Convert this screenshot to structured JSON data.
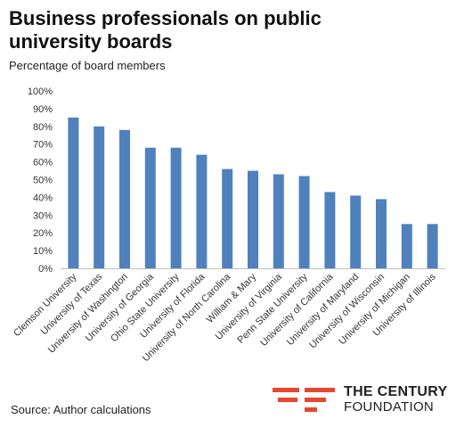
{
  "title": "Business professionals on public university boards",
  "subtitle": "Percentage of board members",
  "source": "Source: Author calculations",
  "logo": {
    "line1": "THE CENTURY",
    "line2": "FOUNDATION",
    "accent_color": "#e8472f"
  },
  "chart_data": {
    "type": "bar",
    "categories": [
      "Clemson University",
      "University of Texas",
      "University of Washington",
      "University of Georgia",
      "Ohio State University",
      "University of Florida",
      "University of North Carolina",
      "William & Mary",
      "University of Virginia",
      "Penn State University",
      "University of California",
      "University of Maryland",
      "University of Wisconsin",
      "University of Michigan",
      "University of Illinois"
    ],
    "values": [
      85,
      80,
      78,
      68,
      68,
      64,
      56,
      55,
      53,
      52,
      43,
      41,
      39,
      25,
      25
    ],
    "ylabel": "Percentage of board members",
    "ylim": [
      0,
      100
    ],
    "yticks": [
      "0%",
      "10%",
      "20%",
      "30%",
      "40%",
      "50%",
      "60%",
      "70%",
      "80%",
      "90%",
      "100%"
    ],
    "bar_color": "#4f81bd",
    "grid": false
  }
}
